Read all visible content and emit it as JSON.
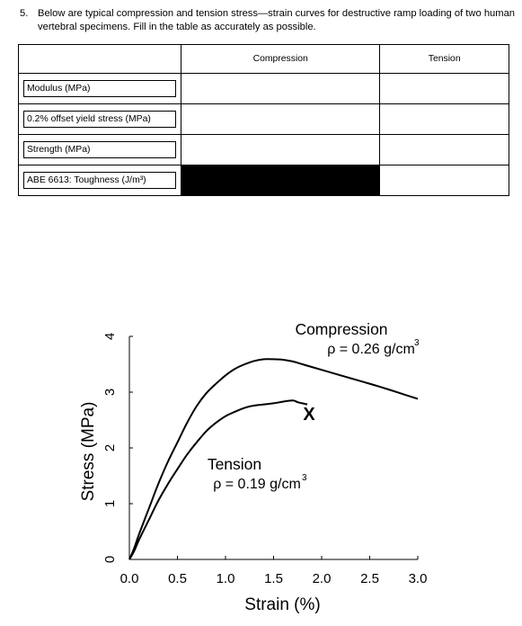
{
  "question": {
    "number": "5.",
    "text": "Below are typical compression and tension stress—strain curves for destructive ramp loading of two human vertebral specimens.  Fill in the table as accurately as possible."
  },
  "table": {
    "columns": [
      "",
      "Compression",
      "Tension"
    ],
    "rows": [
      {
        "label": "Modulus (MPa)",
        "compression": "",
        "tension": ""
      },
      {
        "label": "0.2% offset yield stress (MPa)",
        "compression": "",
        "tension": ""
      },
      {
        "label": "Strength (MPa)",
        "compression": "",
        "tension": ""
      },
      {
        "label": "ABE 6613: Toughness (J/m³)",
        "compression": "",
        "tension": ""
      }
    ]
  },
  "chart_data": {
    "type": "line",
    "xlabel": "Strain (%)",
    "ylabel": "Stress (MPa)",
    "xlim": [
      0,
      3.0
    ],
    "ylim": [
      0,
      4
    ],
    "xticks": [
      "0.0",
      "0.5",
      "1.0",
      "1.5",
      "2.0",
      "2.5",
      "3.0"
    ],
    "yticks": [
      "0",
      "1",
      "2",
      "3",
      "4"
    ],
    "series": [
      {
        "name": "Compression",
        "density": "ρ = 0.26 g/cm",
        "density_exp": "3",
        "x": [
          0.0,
          0.05,
          0.1,
          0.2,
          0.3,
          0.4,
          0.5,
          0.6,
          0.7,
          0.8,
          0.9,
          1.0,
          1.1,
          1.2,
          1.3,
          1.4,
          1.5,
          1.6,
          1.7,
          1.8,
          2.0,
          2.2,
          2.4,
          2.6,
          2.8,
          3.0
        ],
        "y": [
          0.0,
          0.2,
          0.45,
          0.9,
          1.35,
          1.75,
          2.1,
          2.45,
          2.75,
          2.98,
          3.15,
          3.3,
          3.42,
          3.5,
          3.56,
          3.59,
          3.59,
          3.58,
          3.55,
          3.5,
          3.4,
          3.3,
          3.2,
          3.1,
          2.99,
          2.88
        ]
      },
      {
        "name": "Tension",
        "density": "ρ = 0.19 g/cm",
        "density_exp": "3",
        "x": [
          0.0,
          0.05,
          0.1,
          0.2,
          0.3,
          0.4,
          0.5,
          0.6,
          0.7,
          0.8,
          0.9,
          1.0,
          1.1,
          1.2,
          1.3,
          1.4,
          1.5,
          1.6,
          1.7,
          1.75,
          1.8,
          1.85
        ],
        "y": [
          0.0,
          0.15,
          0.35,
          0.7,
          1.05,
          1.35,
          1.62,
          1.88,
          2.1,
          2.3,
          2.45,
          2.57,
          2.65,
          2.72,
          2.76,
          2.78,
          2.8,
          2.83,
          2.85,
          2.82,
          2.8,
          2.78
        ]
      }
    ],
    "failure_marker": {
      "label": "X",
      "x": 1.87,
      "y": 2.63
    }
  }
}
